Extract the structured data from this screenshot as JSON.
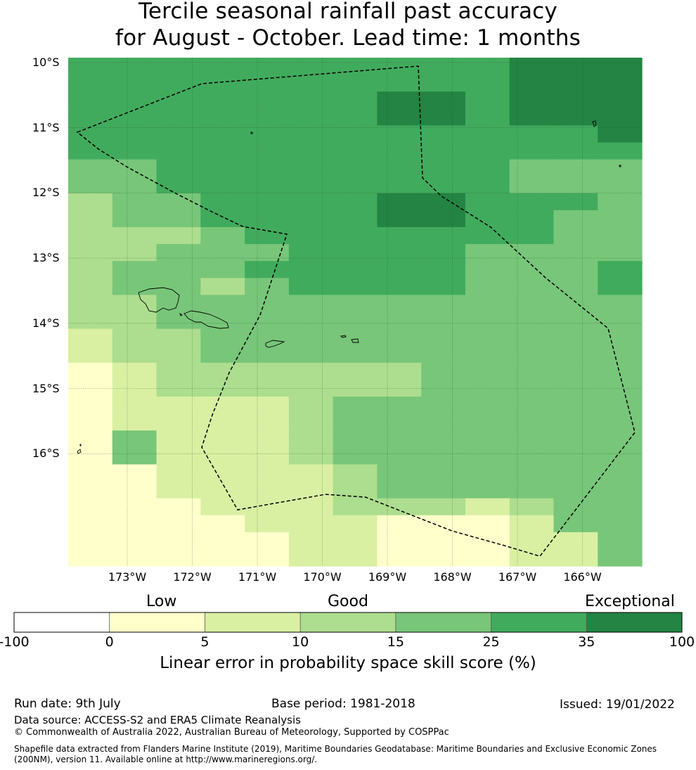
{
  "title_line1": "Tercile seasonal rainfall past accuracy",
  "title_line2": "for August - October. Lead time: 1 months",
  "latitudes": [
    {
      "label": "10°S",
      "value": -10
    },
    {
      "label": "11°S",
      "value": -11
    },
    {
      "label": "12°S",
      "value": -12
    },
    {
      "label": "13°S",
      "value": -13
    },
    {
      "label": "14°S",
      "value": -14
    },
    {
      "label": "15°S",
      "value": -15
    },
    {
      "label": "16°S",
      "value": -16
    }
  ],
  "longitudes": [
    {
      "label": "173°W",
      "value": -173
    },
    {
      "label": "172°W",
      "value": -172
    },
    {
      "label": "171°W",
      "value": -171
    },
    {
      "label": "170°W",
      "value": -170
    },
    {
      "label": "169°W",
      "value": -169
    },
    {
      "label": "168°W",
      "value": -168
    },
    {
      "label": "167°W",
      "value": -167
    },
    {
      "label": "166°W",
      "value": -166
    }
  ],
  "colors": {
    "below0": "#ffffff",
    "c0_5": "#ffffcc",
    "c5_10": "#d9f0a3",
    "c10_15": "#addd8e",
    "c15_25": "#78c679",
    "c25_35": "#41ab5d",
    "c35_100": "#238443"
  },
  "grid_codes": [
    "5555555555666",
    "5555555555666",
    "5555555665666",
    "5555555665666",
    "5555555555556",
    "5555555555555",
    "4455555555444",
    "4455555555444",
    "3445555665554",
    "3445555665544",
    "3334555555544",
    "3344455554444",
    "3444555554445",
    "3443455554445",
    "3344444444444",
    "3344444444444",
    "2334444444444",
    "2334444444444",
    "1233333344444",
    "1233333344444",
    "1222234444444",
    "1222234444444",
    "1422234444444",
    "1422234444444",
    "1122223444444",
    "1122223444444",
    "1112223332344",
    "1111222111244",
    "1111122111224",
    "1111122111224"
  ],
  "colorbar": {
    "segments": [
      "#ffffff",
      "#ffffcc",
      "#d9f0a3",
      "#addd8e",
      "#78c679",
      "#41ab5d",
      "#238443"
    ],
    "ticks": [
      "-100",
      "0",
      "5",
      "10",
      "15",
      "25",
      "35",
      "100"
    ],
    "categories": [
      "Low",
      "Good",
      "Exceptional"
    ],
    "title": "Linear error in probability space skill score (%)"
  },
  "footer": {
    "run_date": "Run date: 9th July",
    "base_period": "Base period: 1981-2018",
    "issued": "Issued: 19/01/2022",
    "data_source": "Data source: ACCESS-S2 and ERA5 Climate Reanalysis",
    "copyright": "© Commonwealth of Australia 2022, Australian Bureau of Meteorology, Supported by COSPPac",
    "shapefile_line1": "Shapefile data extracted from Flanders Marine Institute (2019), Maritime Boundaries Geodatabase: Maritime Boundaries and Exclusive Economic Zones",
    "shapefile_line2": "(200NM), version 11. Available online at http://www.marineregions.org/."
  }
}
